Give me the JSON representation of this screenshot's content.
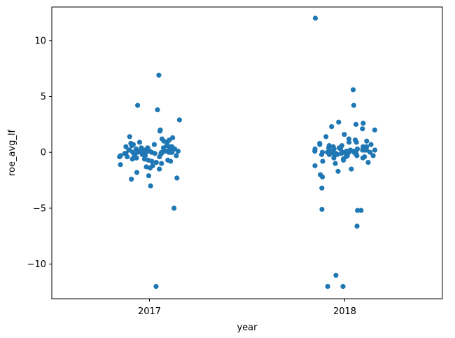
{
  "chart_data": {
    "type": "scatter",
    "subtype": "strip",
    "xlabel": "year",
    "ylabel": "roe_avg_lf",
    "categories": [
      "2017",
      "2018"
    ],
    "ylim": [
      -13.1,
      13.0
    ],
    "yticks": [
      -10,
      -5,
      0,
      5,
      10
    ],
    "ytick_labels": [
      "−10",
      "−5",
      "0",
      "5",
      "10"
    ],
    "grid": false,
    "legend": "none",
    "marker_color": "#1f77b4",
    "series": [
      {
        "category": "2017",
        "values": [
          6.9,
          4.2,
          3.8,
          2.9,
          2.0,
          1.9,
          1.4,
          1.3,
          1.2,
          1.1,
          1.0,
          0.9,
          0.9,
          0.8,
          0.7,
          0.7,
          0.6,
          0.6,
          0.5,
          0.5,
          0.5,
          0.4,
          0.4,
          0.4,
          0.3,
          0.3,
          0.3,
          0.3,
          0.2,
          0.2,
          0.2,
          0.2,
          0.2,
          0.1,
          0.1,
          0.1,
          0.1,
          0.1,
          0.1,
          0.0,
          0.0,
          0.0,
          0.0,
          0.0,
          0.0,
          0.0,
          0.0,
          -0.1,
          -0.1,
          -0.1,
          -0.1,
          -0.1,
          -0.1,
          -0.2,
          -0.2,
          -0.2,
          -0.2,
          -0.3,
          -0.3,
          -0.3,
          -0.3,
          -0.4,
          -0.4,
          -0.4,
          -0.5,
          -0.5,
          -0.6,
          -0.6,
          -0.7,
          -0.7,
          -0.8,
          -0.8,
          -0.9,
          -1.0,
          -1.1,
          -1.2,
          -1.3,
          -1.4,
          -1.5,
          -1.8,
          -2.1,
          -2.3,
          -2.4,
          -3.0,
          -5.0,
          -12.0
        ]
      },
      {
        "category": "2018",
        "values": [
          12.0,
          5.6,
          4.2,
          2.7,
          2.6,
          2.5,
          2.3,
          2.1,
          2.0,
          1.6,
          1.4,
          1.2,
          1.1,
          1.0,
          0.9,
          0.9,
          0.8,
          0.7,
          0.7,
          0.6,
          0.6,
          0.5,
          0.5,
          0.5,
          0.4,
          0.4,
          0.4,
          0.3,
          0.3,
          0.3,
          0.3,
          0.2,
          0.2,
          0.2,
          0.2,
          0.2,
          0.1,
          0.1,
          0.1,
          0.1,
          0.1,
          0.1,
          0.0,
          0.0,
          0.0,
          0.0,
          0.0,
          0.0,
          0.0,
          0.0,
          -0.1,
          -0.1,
          -0.1,
          -0.1,
          -0.1,
          -0.2,
          -0.2,
          -0.2,
          -0.2,
          -0.3,
          -0.3,
          -0.3,
          -0.4,
          -0.4,
          -0.5,
          -0.5,
          -0.6,
          -0.7,
          -0.8,
          -0.9,
          -1.0,
          -1.2,
          -1.5,
          -1.7,
          -2.0,
          -2.2,
          -3.2,
          -5.1,
          -5.2,
          -5.2,
          -6.6,
          -11.0,
          -12.0,
          -12.0
        ]
      }
    ]
  }
}
